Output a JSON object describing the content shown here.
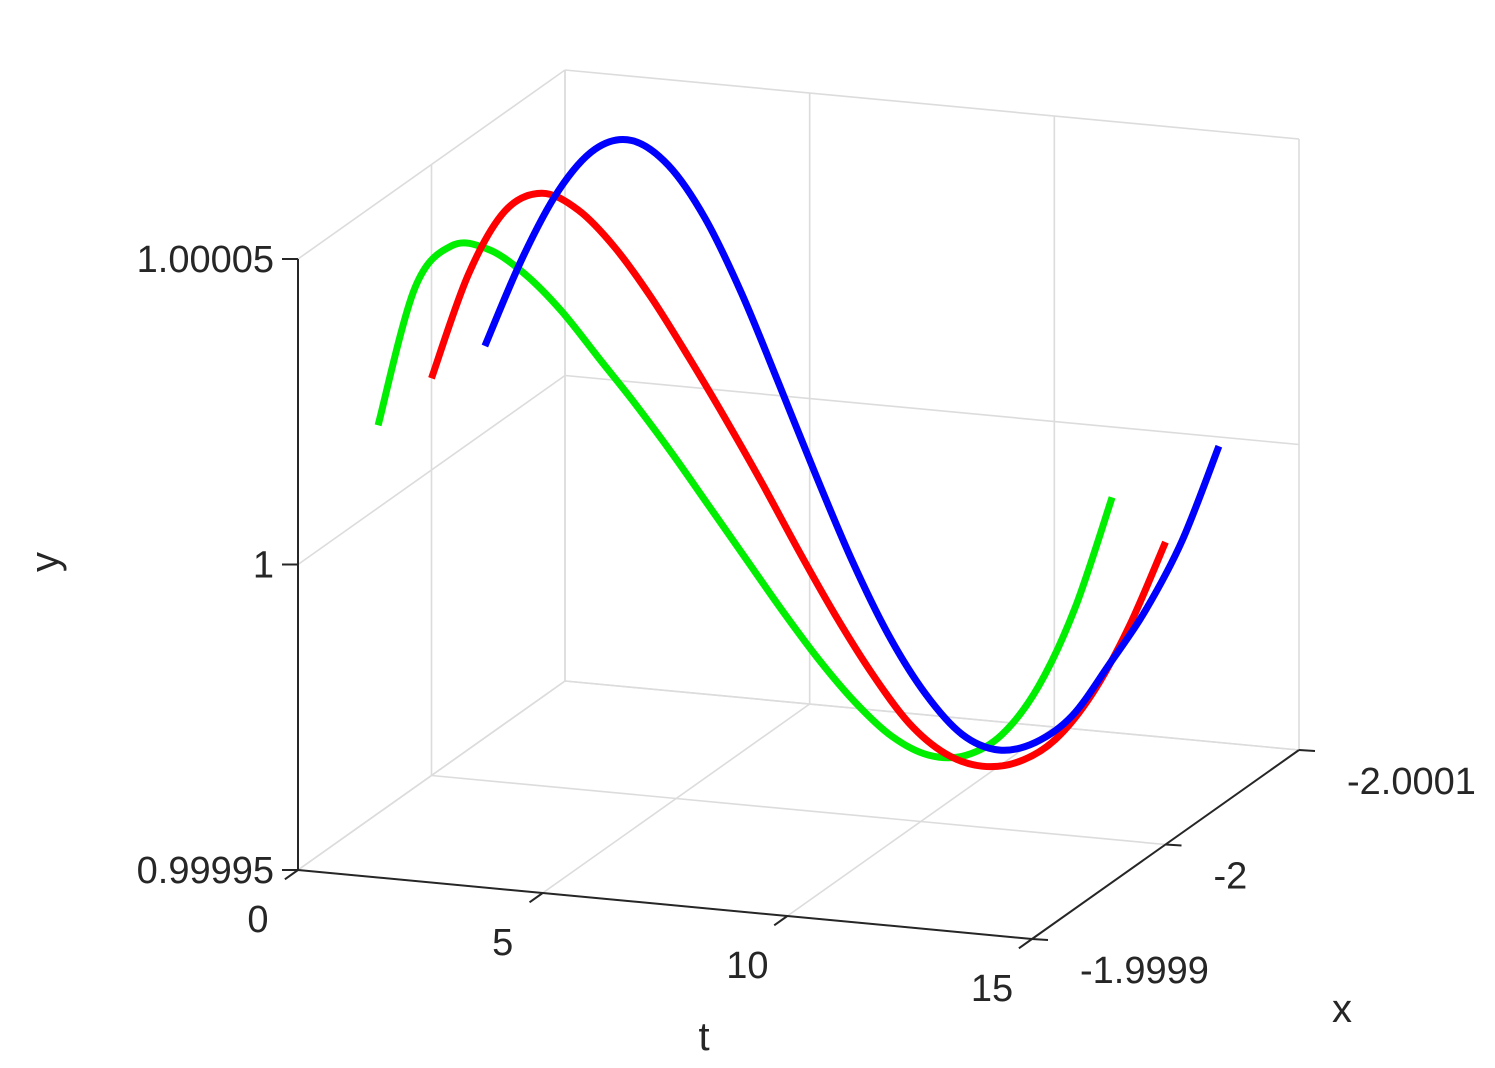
{
  "chart_data": {
    "type": "line",
    "projection": "3d",
    "xlabel": "t",
    "ylabel": "x",
    "zlabel": "y",
    "xlim": [
      0,
      15
    ],
    "ylim": [
      -1.9999,
      -2.0001
    ],
    "zlim": [
      0.99995,
      1.00005
    ],
    "x_ticks": [
      "0",
      "5",
      "10",
      "15"
    ],
    "y_ticks": [
      "-1.9999",
      "-2",
      "-2.0001"
    ],
    "z_ticks": [
      "0.99995",
      "1",
      "1.00005"
    ],
    "grid": true,
    "t": [
      0,
      0.75,
      1.5,
      2.25,
      3,
      3.75,
      4.5,
      5.25,
      6,
      6.75,
      7.5,
      8.25,
      9,
      9.75,
      10.5,
      11.25,
      12,
      12.75,
      13.5,
      14.25,
      15
    ],
    "series": [
      {
        "color": "#0000ff",
        "x": [
          -2.00004,
          -2.00004,
          -2.00004,
          -2.00004,
          -2.00004,
          -2.00004,
          -2.00004,
          -2.00004,
          -2.00004,
          -2.00004,
          -2.00004,
          -2.00004,
          -2.00004,
          -2.00004,
          -2.00004,
          -2.00004,
          -2.00004,
          -2.00004,
          -2.00004,
          -2.00004,
          -2.00004
        ],
        "y": [
          1.0000141,
          1.0000288,
          1.0000406,
          1.000048,
          1.00005,
          1.0000465,
          1.0000384,
          1.0000266,
          1.0000126,
          0.9999983,
          0.9999847,
          0.999973,
          0.999964,
          0.9999579,
          0.9999559,
          0.9999577,
          0.9999626,
          0.9999715,
          0.999981,
          0.999993,
          1.000009
        ]
      },
      {
        "color": "#ff0000",
        "x": [
          -2,
          -2,
          -2,
          -2,
          -2,
          -2,
          -2,
          -2,
          -2,
          -2,
          -2,
          -2,
          -2,
          -2,
          -2,
          -2,
          -2,
          -2,
          -2,
          -2,
          -2
        ],
        "y": [
          1.000015,
          1.0000325,
          1.0000435,
          1.000047,
          1.0000448,
          1.0000392,
          1.0000315,
          1.0000225,
          1.000013,
          1.000003,
          0.9999925,
          0.9999825,
          0.9999735,
          0.999966,
          0.9999615,
          0.99996,
          0.9999613,
          0.9999655,
          0.9999735,
          0.999985,
          0.9999995
        ]
      },
      {
        "color": "#00ee00",
        "x": [
          -1.99996,
          -1.99996,
          -1.99996,
          -1.99996,
          -1.99996,
          -1.99996,
          -1.99996,
          -1.99996,
          -1.99996,
          -1.99996,
          -1.99996,
          -1.99996,
          -1.99996,
          -1.99996,
          -1.99996,
          -1.99996,
          -1.99996,
          -1.99996,
          -1.99996,
          -1.99996,
          -1.99996
        ],
        "y": [
          1.0000135,
          1.0000365,
          1.000044,
          1.000044,
          1.0000405,
          1.000035,
          1.000028,
          1.000021,
          1.0000135,
          1.0000055,
          0.9999975,
          0.9999895,
          0.999982,
          0.9999755,
          0.9999705,
          0.999968,
          0.9999685,
          0.9999725,
          0.999981,
          0.9999945,
          1.000013
        ]
      }
    ]
  }
}
